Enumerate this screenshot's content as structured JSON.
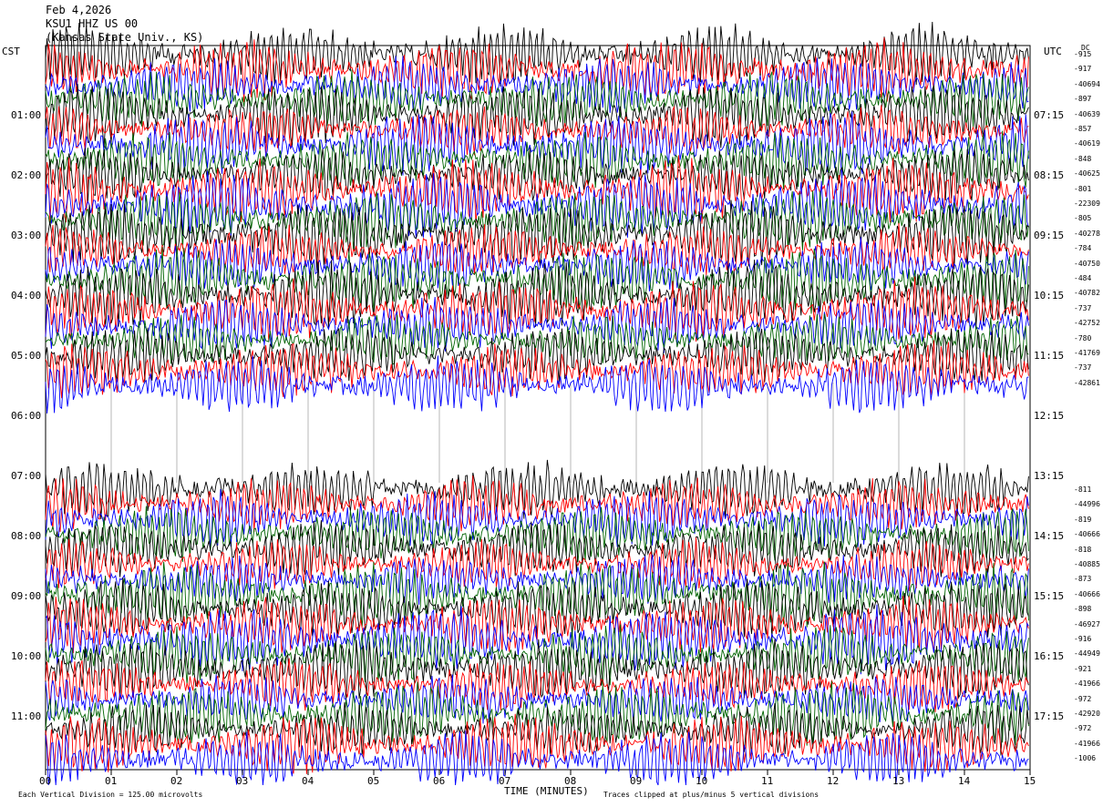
{
  "header": {
    "date": "Feb 4,2026",
    "station": "KSU1 HHZ US 00",
    "location": "(Kansas State Univ., KS)"
  },
  "left_zone": "CST",
  "right_zone": "UTC",
  "dc_label": "DC",
  "left_hours": [
    "01:00",
    "02:00",
    "03:00",
    "04:00",
    "05:00",
    "06:00",
    "07:00",
    "08:00",
    "09:00",
    "10:00",
    "11:00"
  ],
  "right_hours": [
    "07:15",
    "08:15",
    "09:15",
    "10:15",
    "11:15",
    "12:15",
    "13:15",
    "14:15",
    "15:15",
    "16:15",
    "17:15"
  ],
  "dc_values_top": [
    "-915",
    "-917",
    "-40694",
    "-897",
    "-40639",
    "-857",
    "-40619",
    "-848",
    "-40625",
    "-801",
    "-22309",
    "-805",
    "-40278",
    "-784",
    "-40750",
    "-484",
    "-40782",
    "-737",
    "-42752",
    "-780",
    "-41769",
    "-737",
    "-42861"
  ],
  "dc_values_bottom": [
    "-811",
    "-44996",
    "-819",
    "-40666",
    "-818",
    "-40885",
    "-873",
    "-40666",
    "-898",
    "-46927",
    "-916",
    "-44949",
    "-921",
    "-41966",
    "-972",
    "-42920",
    "-972",
    "-41966",
    "-1006"
  ],
  "x_ticks": [
    "00",
    "01",
    "02",
    "03",
    "04",
    "05",
    "06",
    "07",
    "08",
    "09",
    "10",
    "11",
    "12",
    "13",
    "14",
    "15"
  ],
  "x_axis_label": "TIME (MINUTES)",
  "footer_left": "Each Vertical Division =  125.00 microvolts",
  "footer_right": "Traces clipped at plus/minus 5 vertical divisions",
  "trace_colors": [
    "#000000",
    "#ff0000",
    "#0000ff",
    "#006400"
  ],
  "chart_data": {
    "type": "line",
    "x_range_minutes": [
      0,
      15
    ],
    "lines_per_hour": 4,
    "minutes_per_line": 15,
    "gap_hours": [
      "05:45",
      "06:30"
    ],
    "grid": "vertical minute ticks in gap region"
  }
}
